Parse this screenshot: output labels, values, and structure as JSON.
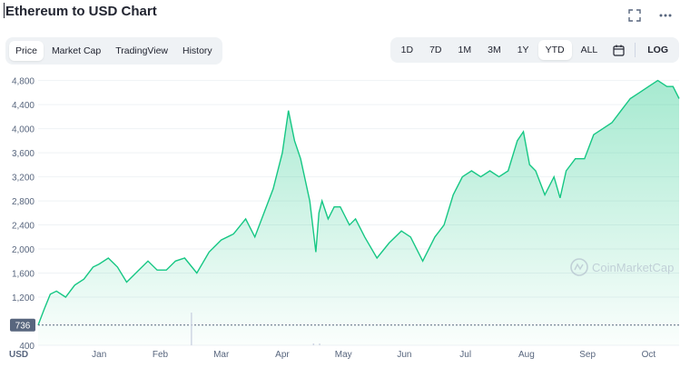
{
  "header": {
    "title": "Ethereum to USD Chart"
  },
  "icons": {
    "expand": "expand-icon",
    "more": "more-icon",
    "calendar": "calendar-icon"
  },
  "tabs": [
    {
      "label": "Price",
      "active": true
    },
    {
      "label": "Market Cap",
      "active": false
    },
    {
      "label": "TradingView",
      "active": false
    },
    {
      "label": "History",
      "active": false
    }
  ],
  "ranges": [
    {
      "label": "1D",
      "active": false
    },
    {
      "label": "7D",
      "active": false
    },
    {
      "label": "1M",
      "active": false
    },
    {
      "label": "3M",
      "active": false
    },
    {
      "label": "1Y",
      "active": false
    },
    {
      "label": "YTD",
      "active": true
    },
    {
      "label": "ALL",
      "active": false
    }
  ],
  "log_label": "LOG",
  "watermark": "CoinMarketCap",
  "colors": {
    "line": "#16c784",
    "fill_top": "#16c784",
    "accent_badge": "#58667e"
  },
  "chart_data": {
    "type": "area",
    "x_unit": "month index (Jan 1 = 0)",
    "ylabel": "USD",
    "ylim": [
      400,
      4900
    ],
    "yticks": [
      "4,800",
      "4,400",
      "4,000",
      "3,600",
      "3,200",
      "2,800",
      "2,400",
      "2,000",
      "1,600",
      "1,200",
      "400"
    ],
    "start_badge": "736",
    "baseline_value": 736,
    "xtick_labels": [
      "Jan",
      "Feb",
      "Mar",
      "Apr",
      "May",
      "Jun",
      "Jul",
      "Aug",
      "Sep",
      "Oct"
    ],
    "xtick_positions": [
      1,
      2,
      3,
      4,
      5,
      6,
      7,
      8,
      9,
      10
    ],
    "x": [
      0,
      0.1,
      0.2,
      0.3,
      0.45,
      0.6,
      0.75,
      0.9,
      1.0,
      1.15,
      1.3,
      1.45,
      1.6,
      1.8,
      1.95,
      2.1,
      2.25,
      2.4,
      2.6,
      2.8,
      3.0,
      3.2,
      3.4,
      3.55,
      3.7,
      3.85,
      4.0,
      4.1,
      4.2,
      4.3,
      4.45,
      4.55,
      4.6,
      4.65,
      4.75,
      4.85,
      4.95,
      5.1,
      5.2,
      5.35,
      5.55,
      5.75,
      5.95,
      6.1,
      6.3,
      6.5,
      6.65,
      6.8,
      6.95,
      7.1,
      7.25,
      7.4,
      7.55,
      7.7,
      7.85,
      7.95,
      8.05,
      8.15,
      8.3,
      8.45,
      8.55,
      8.65,
      8.8,
      8.95,
      9.1,
      9.25,
      9.4,
      9.55,
      9.7,
      9.85,
      10.0,
      10.15,
      10.3,
      10.4,
      10.5
    ],
    "y": [
      736,
      1000,
      1250,
      1300,
      1200,
      1400,
      1500,
      1700,
      1750,
      1850,
      1700,
      1450,
      1600,
      1800,
      1650,
      1650,
      1800,
      1850,
      1600,
      1950,
      2150,
      2250,
      2500,
      2200,
      2600,
      3000,
      3600,
      4300,
      3800,
      3500,
      2800,
      1950,
      2600,
      2800,
      2500,
      2700,
      2700,
      2400,
      2500,
      2200,
      1850,
      2100,
      2300,
      2200,
      1800,
      2200,
      2400,
      2900,
      3200,
      3300,
      3200,
      3300,
      3200,
      3300,
      3800,
      3950,
      3400,
      3300,
      2900,
      3200,
      2850,
      3300,
      3500,
      3500,
      3900,
      4000,
      4100,
      4300,
      4500,
      4600,
      4700,
      4800,
      4700,
      4700,
      4500
    ]
  }
}
